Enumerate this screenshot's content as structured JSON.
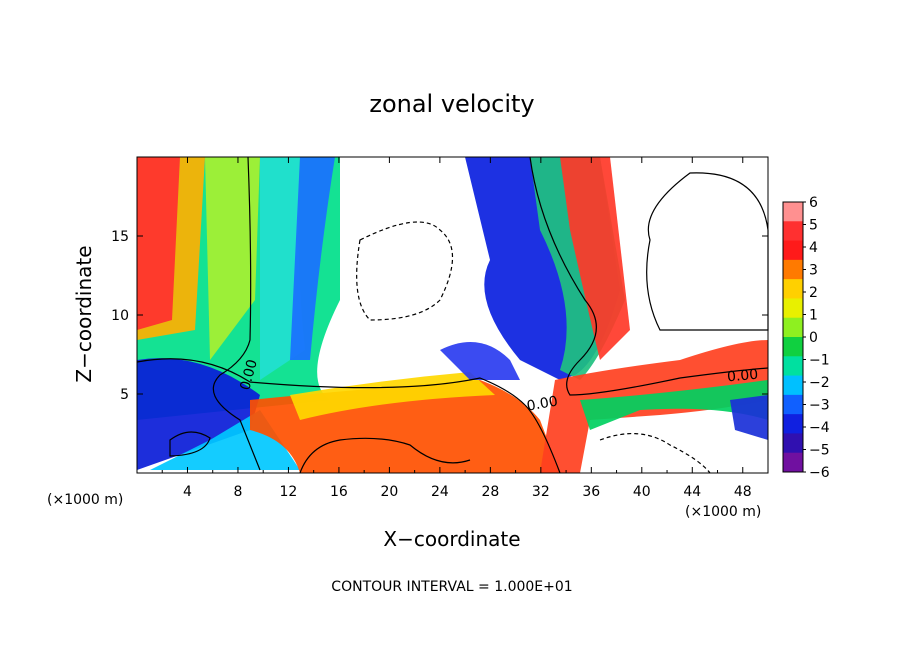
{
  "chart_data": {
    "type": "heatmap",
    "title": "zonal velocity",
    "xlabel": "X−coordinate",
    "ylabel": "Z−coordinate",
    "x_units": "(×1000 m)",
    "y_units": "(×1000 m)",
    "xlim": [
      0,
      50
    ],
    "ylim": [
      0,
      20
    ],
    "x_ticks": [
      "4",
      "8",
      "12",
      "16",
      "20",
      "24",
      "28",
      "32",
      "36",
      "40",
      "44",
      "48"
    ],
    "y_ticks": [
      "5",
      "10",
      "15"
    ],
    "colorbar": {
      "min": -6,
      "max": 6,
      "labels": [
        "6",
        "5",
        "4",
        "3",
        "2",
        "1",
        "0",
        "−1",
        "−2",
        "−3",
        "−4",
        "−5",
        "−6"
      ]
    },
    "contour_labels": [
      "0.00",
      "0.00",
      "0.00"
    ],
    "note": "CONTOUR INTERVAL = 1.000E+01"
  }
}
